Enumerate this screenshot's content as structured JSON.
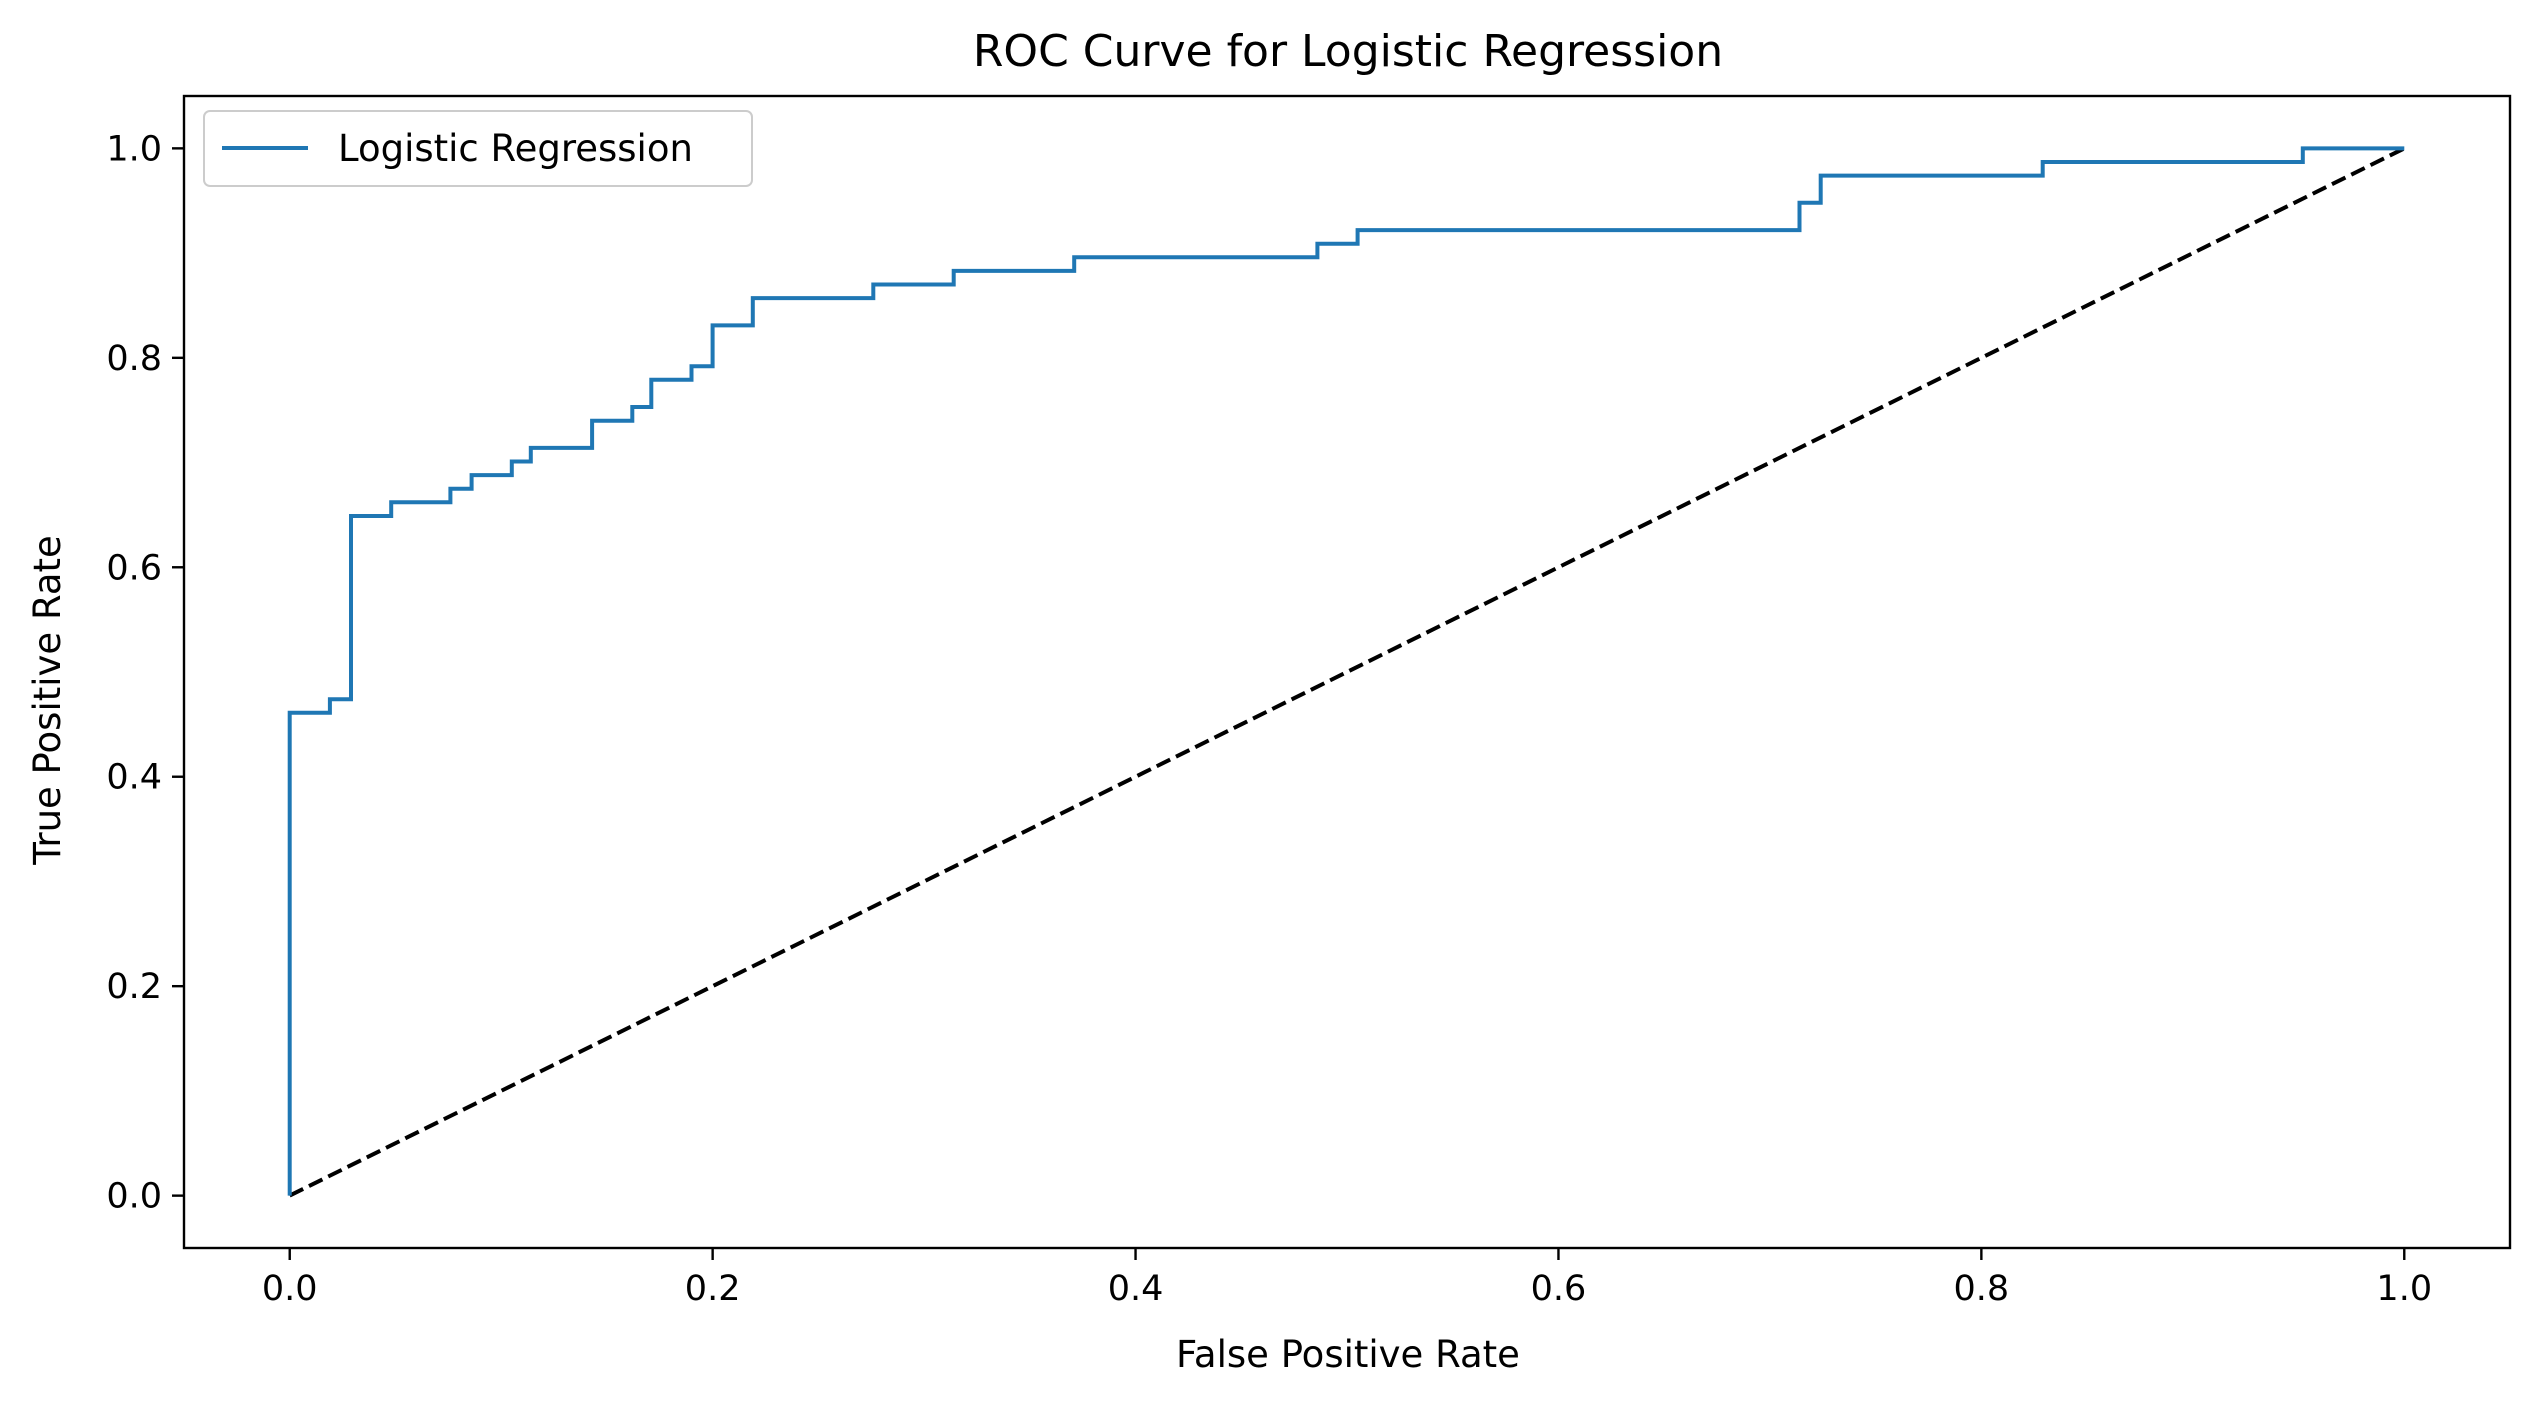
{
  "chart_data": {
    "type": "line",
    "title": "ROC Curve for Logistic Regression",
    "xlabel": "False Positive Rate",
    "ylabel": "True Positive Rate",
    "xlim": [
      -0.05,
      1.05
    ],
    "ylim": [
      -0.05,
      1.05
    ],
    "xticks": [
      0.0,
      0.2,
      0.4,
      0.6,
      0.8,
      1.0
    ],
    "xtick_labels": [
      "0.0",
      "0.2",
      "0.4",
      "0.6",
      "0.8",
      "1.0"
    ],
    "yticks": [
      0.0,
      0.2,
      0.4,
      0.6,
      0.8,
      1.0
    ],
    "ytick_labels": [
      "0.0",
      "0.2",
      "0.4",
      "0.6",
      "0.8",
      "1.0"
    ],
    "grid": false,
    "legend_position": "upper-left",
    "series": [
      {
        "name": "Logistic Regression",
        "color": "#1f77b4",
        "style": "solid",
        "step": true,
        "x": [
          0.0,
          0.0,
          0.019,
          0.019,
          0.029,
          0.029,
          0.048,
          0.048,
          0.076,
          0.076,
          0.086,
          0.086,
          0.105,
          0.105,
          0.114,
          0.114,
          0.143,
          0.143,
          0.162,
          0.162,
          0.171,
          0.171,
          0.19,
          0.19,
          0.2,
          0.2,
          0.219,
          0.219,
          0.276,
          0.276,
          0.314,
          0.314,
          0.371,
          0.371,
          0.486,
          0.486,
          0.505,
          0.505,
          0.714,
          0.714,
          0.724,
          0.724,
          0.829,
          0.829,
          0.952,
          0.952,
          1.0
        ],
        "y": [
          0.0,
          0.461,
          0.461,
          0.474,
          0.474,
          0.649,
          0.649,
          0.662,
          0.662,
          0.675,
          0.675,
          0.688,
          0.688,
          0.701,
          0.701,
          0.714,
          0.714,
          0.74,
          0.74,
          0.753,
          0.753,
          0.779,
          0.779,
          0.792,
          0.792,
          0.831,
          0.831,
          0.857,
          0.857,
          0.87,
          0.87,
          0.883,
          0.883,
          0.896,
          0.896,
          0.909,
          0.909,
          0.922,
          0.922,
          0.948,
          0.948,
          0.974,
          0.974,
          0.987,
          0.987,
          1.0,
          1.0
        ]
      },
      {
        "name": "",
        "color": "#000000",
        "style": "dashed",
        "step": false,
        "x": [
          0.0,
          1.0
        ],
        "y": [
          0.0,
          1.0
        ]
      }
    ]
  }
}
